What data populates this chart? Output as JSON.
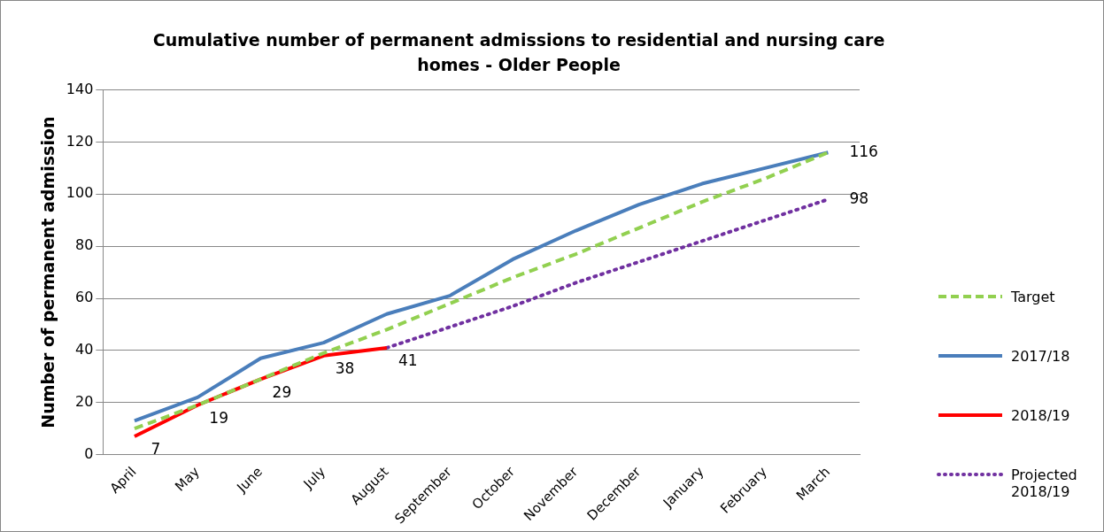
{
  "chart_data": {
    "type": "line",
    "title": "Cumulative number of permanent admissions to residential and nursing care homes - Older People",
    "ylabel": "Number of permanent admission",
    "categories": [
      "April",
      "May",
      "June",
      "July",
      "August",
      "September",
      "October",
      "November",
      "December",
      "January",
      "February",
      "March"
    ],
    "series": [
      {
        "name": "Target",
        "color": "#92d050",
        "line_style": "dashed",
        "values": [
          10,
          19,
          29,
          39,
          48,
          58,
          68,
          77,
          87,
          97,
          106,
          116
        ]
      },
      {
        "name": "2017/18",
        "color": "#4a7ebb",
        "values": [
          13,
          22,
          37,
          43,
          54,
          61,
          75,
          86,
          96,
          104,
          110,
          116
        ],
        "value_labels": [
          null,
          null,
          null,
          null,
          null,
          null,
          null,
          null,
          null,
          null,
          null,
          "116"
        ]
      },
      {
        "name": "2018/19",
        "color": "#ff0000",
        "values": [
          7,
          19,
          29,
          38,
          41,
          null,
          null,
          null,
          null,
          null,
          null,
          null
        ],
        "value_labels": [
          "7",
          "19",
          "29",
          "38",
          "41",
          null,
          null,
          null,
          null,
          null,
          null,
          null
        ]
      },
      {
        "name": "Projected 2018/19",
        "color": "#7030a0",
        "line_style": "dotted",
        "values": [
          null,
          null,
          null,
          null,
          41,
          49,
          57,
          66,
          74,
          82,
          90,
          98
        ],
        "value_labels": [
          null,
          null,
          null,
          null,
          null,
          null,
          null,
          null,
          null,
          null,
          null,
          "98"
        ]
      }
    ],
    "ylim": [
      0,
      140
    ],
    "yticks": [
      0,
      20,
      40,
      60,
      80,
      100,
      120,
      140
    ],
    "grid": "y",
    "legend": "right",
    "marker": "none"
  }
}
